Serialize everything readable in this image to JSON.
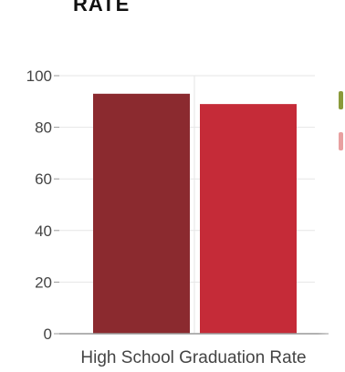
{
  "title": "RATE",
  "chart_data": {
    "type": "bar",
    "categories": [
      "High School Graduation Rate"
    ],
    "series": [
      {
        "values": [
          93
        ],
        "color": "#8b2a2f"
      },
      {
        "values": [
          89
        ],
        "color": "#c52b38"
      }
    ],
    "ylim": [
      0,
      100
    ],
    "yticks": [
      0,
      20,
      40,
      60,
      80,
      100
    ],
    "grid": true,
    "legend": "right (cropped)"
  },
  "colors": {
    "axis": "#999999",
    "grid": "#e6e6e6",
    "tick_text": "#444444",
    "legend_mark_1": "#8a9a3a",
    "legend_mark_2": "#e8a0a0"
  }
}
